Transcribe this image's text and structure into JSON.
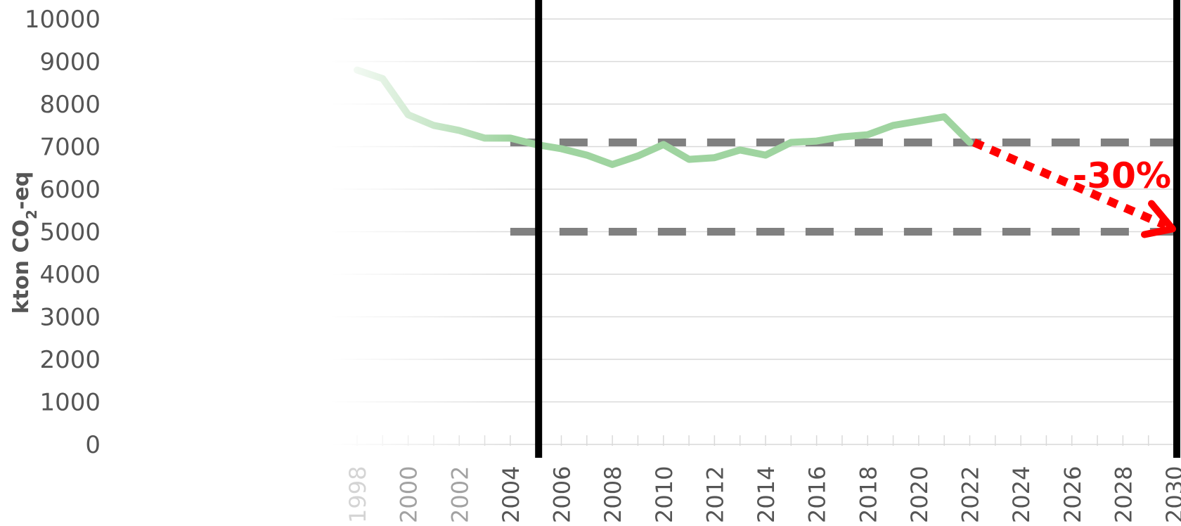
{
  "chart_data": {
    "type": "line",
    "title": "",
    "ylabel": "kton CO₂-eq",
    "ylabel_main": "kton CO",
    "ylabel_sub": "2",
    "ylabel_end": "-eq",
    "ylim": [
      0,
      10000
    ],
    "yticks": [
      0,
      1000,
      2000,
      3000,
      4000,
      5000,
      6000,
      7000,
      8000,
      9000,
      10000
    ],
    "xlim": [
      1998,
      2030
    ],
    "xtick_labels": [
      "1998",
      "2000",
      "2002",
      "2004",
      "2006",
      "2008",
      "2010",
      "2012",
      "2014",
      "2016",
      "2018",
      "2020",
      "2022",
      "2024",
      "2026",
      "2028",
      "2030"
    ],
    "grid": true,
    "series": [
      {
        "color": "#9fd4a0",
        "x": [
          1998,
          1999,
          2000,
          2001,
          2002,
          2003,
          2004,
          2005,
          2006,
          2007,
          2008,
          2009,
          2010,
          2011,
          2012,
          2013,
          2014,
          2015,
          2016,
          2017,
          2018,
          2019,
          2020,
          2021,
          2022
        ],
        "y": [
          8800,
          8600,
          7750,
          7500,
          7380,
          7200,
          7200,
          7050,
          6950,
          6800,
          6580,
          6780,
          7050,
          6700,
          6740,
          6920,
          6800,
          7100,
          7130,
          7230,
          7280,
          7500,
          7600,
          7700,
          7100
        ]
      }
    ],
    "reference_lines": [
      {
        "y": 7100,
        "from": 2004,
        "to": 2030,
        "style": "dashed",
        "color": "#808080"
      },
      {
        "y": 5000,
        "from": 2004,
        "to": 2030,
        "style": "dashed",
        "color": "#808080"
      }
    ],
    "vertical_markers": [
      2005,
      2030
    ],
    "target_arrow": {
      "from": [
        2022,
        7100
      ],
      "to": [
        2030,
        5000
      ],
      "color": "#ff0000",
      "label": "-30%"
    }
  }
}
